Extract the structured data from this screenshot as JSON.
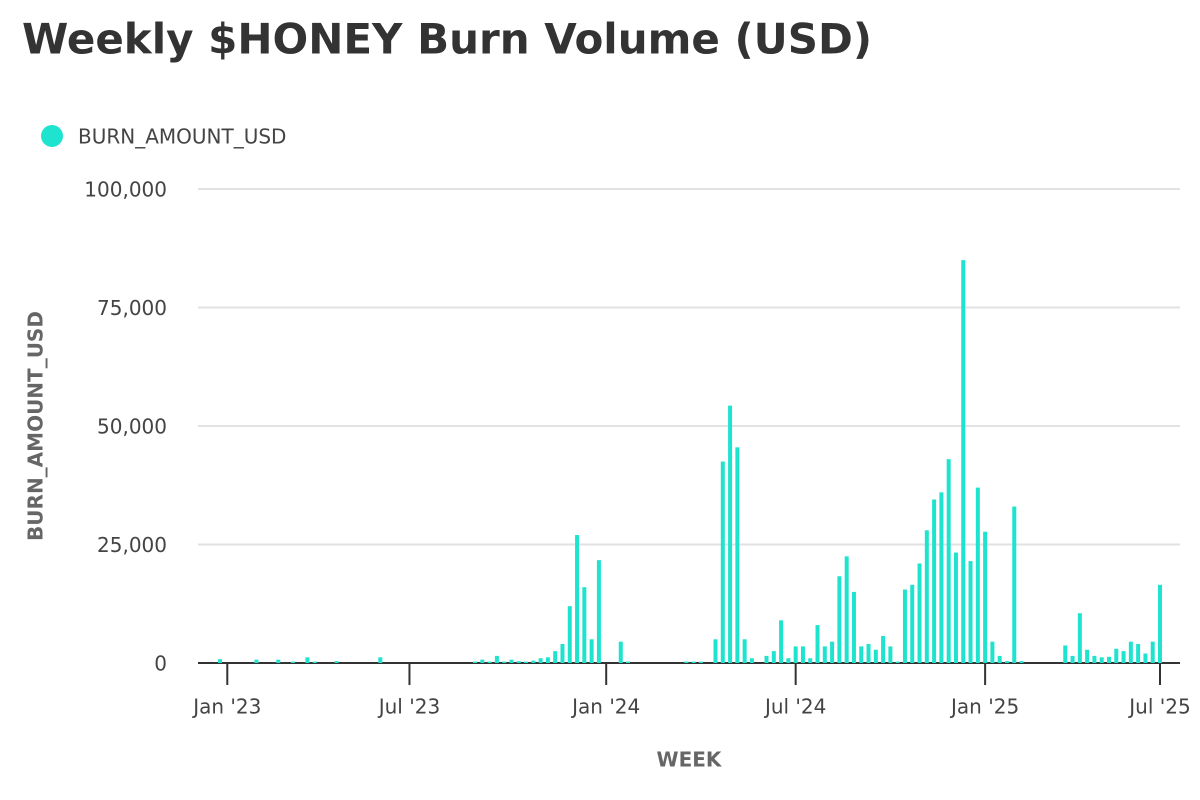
{
  "chart_data": {
    "type": "bar",
    "title": "Weekly $HONEY Burn Volume (USD)",
    "x_label": "WEEK",
    "y_label": "BURN_AMOUNT_USD",
    "grid": true,
    "categories": [
      null,
      "Jan '23",
      null,
      null,
      null,
      null,
      null,
      null,
      null,
      null,
      null,
      null,
      null,
      null,
      null,
      null,
      null,
      null,
      null,
      null,
      null,
      null,
      null,
      null,
      null,
      null,
      "Jul '23",
      null,
      null,
      null,
      null,
      null,
      null,
      null,
      null,
      null,
      null,
      null,
      null,
      null,
      null,
      null,
      null,
      null,
      null,
      null,
      null,
      null,
      null,
      null,
      null,
      null,
      null,
      "Jan '24",
      null,
      null,
      null,
      null,
      null,
      null,
      null,
      null,
      null,
      null,
      null,
      null,
      null,
      null,
      null,
      null,
      null,
      null,
      null,
      null,
      null,
      null,
      null,
      null,
      null,
      "Jul '24",
      null,
      null,
      null,
      null,
      null,
      null,
      null,
      null,
      null,
      null,
      null,
      null,
      null,
      null,
      null,
      null,
      null,
      null,
      null,
      null,
      null,
      null,
      null,
      null,
      null,
      "Jan '25",
      null,
      null,
      null,
      null,
      null,
      null,
      null,
      null,
      null,
      null,
      null,
      null,
      null,
      null,
      null,
      null,
      null,
      null,
      null,
      null,
      null,
      null,
      null,
      "Jul '25"
    ],
    "series": [
      {
        "name": "BURN_AMOUNT_USD",
        "color": "#1ee3cf",
        "values": [
          800,
          0,
          0,
          0,
          0,
          700,
          0,
          0,
          700,
          0,
          300,
          0,
          1200,
          300,
          0,
          0,
          400,
          0,
          0,
          0,
          0,
          0,
          1200,
          0,
          0,
          0,
          0,
          0,
          0,
          0,
          0,
          0,
          0,
          0,
          0,
          300,
          700,
          300,
          1500,
          300,
          700,
          400,
          300,
          500,
          1000,
          1200,
          2500,
          4000,
          12000,
          27000,
          16000,
          5000,
          21700,
          0,
          0,
          4500,
          300,
          0,
          0,
          0,
          0,
          0,
          0,
          0,
          300,
          300,
          300,
          0,
          5000,
          42500,
          54300,
          45500,
          5000,
          1000,
          0,
          1500,
          2500,
          9000,
          1000,
          3500,
          3500,
          1000,
          8000,
          3500,
          4500,
          18300,
          22500,
          15000,
          3500,
          4000,
          2800,
          5700,
          3500,
          300,
          15500,
          16500,
          21000,
          28000,
          34500,
          36000,
          43000,
          23300,
          85000,
          21500,
          37000,
          27700,
          4500,
          1500,
          400,
          33000,
          400,
          0,
          0,
          0,
          0,
          0,
          3700,
          1500,
          10500,
          2800,
          1500,
          1200,
          1300,
          3000,
          2500,
          4500,
          4000,
          2000,
          4500,
          16500
        ]
      }
    ],
    "ylim": [
      0,
      100000
    ],
    "yticks": [
      0,
      {
        "value": 25000,
        "label": "25,000"
      },
      {
        "value": 50000,
        "label": "50,000"
      },
      {
        "value": 75000,
        "label": "75,000"
      },
      {
        "value": 100000,
        "label": "100,000"
      }
    ]
  }
}
